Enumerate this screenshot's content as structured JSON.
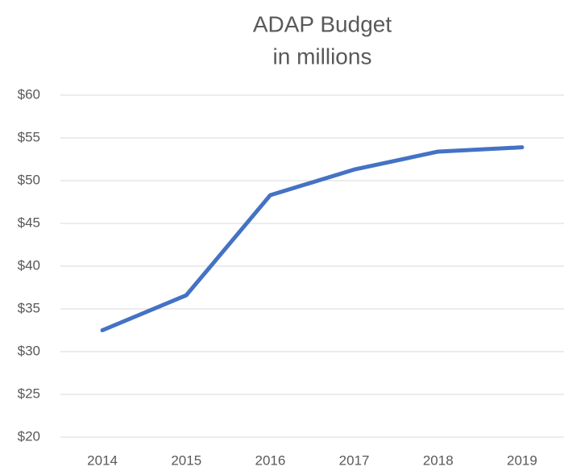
{
  "chart_data": {
    "type": "line",
    "title": "ADAP Budget",
    "subtitle": "in millions",
    "categories": [
      "2014",
      "2015",
      "2016",
      "2017",
      "2018",
      "2019"
    ],
    "series": [
      {
        "name": "ADAP Budget",
        "color": "#4472c4",
        "values": [
          32.5,
          36.6,
          48.3,
          51.3,
          53.4,
          53.9
        ]
      }
    ],
    "ylim": [
      20,
      60
    ],
    "yticks": [
      {
        "value": 20,
        "label": "$20"
      },
      {
        "value": 25,
        "label": "$25"
      },
      {
        "value": 30,
        "label": "$30"
      },
      {
        "value": 35,
        "label": "$35"
      },
      {
        "value": 40,
        "label": "$40"
      },
      {
        "value": 45,
        "label": "$45"
      },
      {
        "value": 50,
        "label": "$50"
      },
      {
        "value": 55,
        "label": "$55"
      },
      {
        "value": 60,
        "label": "$60"
      }
    ],
    "grid": true
  }
}
